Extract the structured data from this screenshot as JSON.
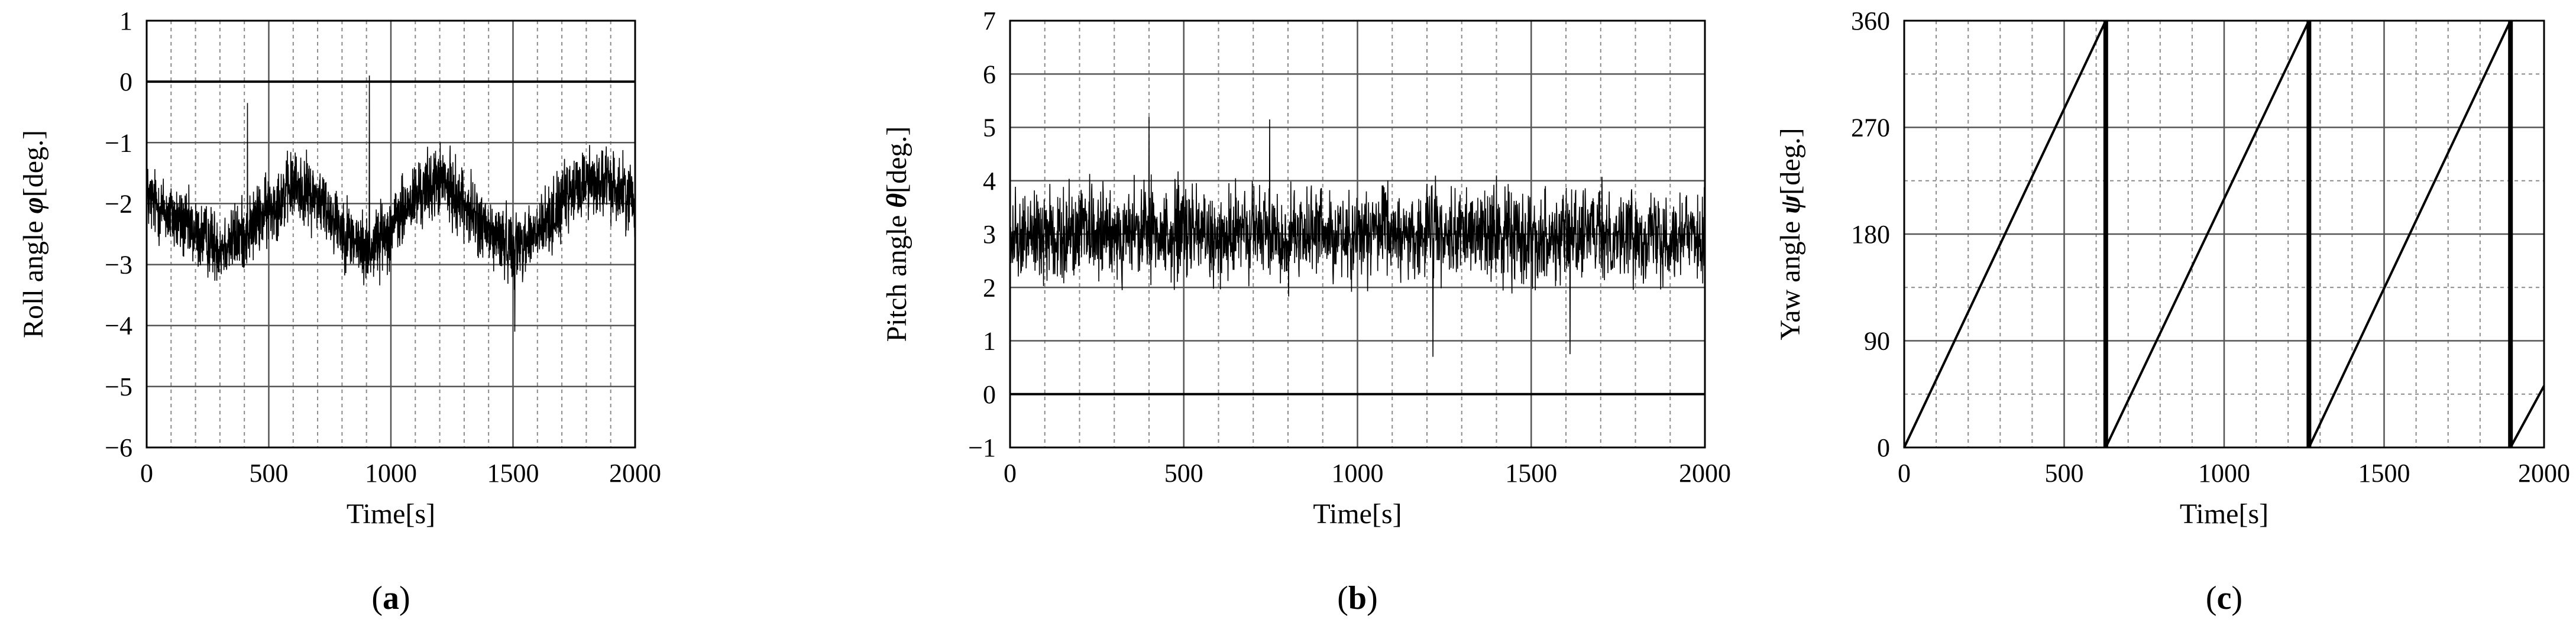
{
  "chart_data": [
    {
      "type": "line",
      "panel_label": "(a)",
      "panel_letter": "a",
      "xlabel": "Time[s]",
      "ylabel": "Roll angle φ[deg.]",
      "ylabel_text": "Roll angle ",
      "ylabel_symbol": "φ",
      "ylabel_unit": "[deg.]",
      "xlim": [
        0,
        2000
      ],
      "ylim": [
        -6,
        1
      ],
      "xticks": [
        0,
        500,
        1000,
        1500,
        2000
      ],
      "yticks": [
        -6,
        -5,
        -4,
        -3,
        -2,
        -1,
        0,
        1
      ],
      "xtick_labels": [
        "0",
        "500",
        "1000",
        "1500",
        "2000"
      ],
      "ytick_labels": [
        "−6",
        "−5",
        "−4",
        "−3",
        "−2",
        "−1",
        "0",
        "1"
      ],
      "minor_x_step": 100,
      "grid": true,
      "series": [
        {
          "color": "#000000",
          "style": "noisy",
          "x": [
            0,
            100,
            200,
            300,
            400,
            500,
            600,
            700,
            800,
            900,
            1000,
            1100,
            1200,
            1300,
            1400,
            1500,
            1600,
            1700,
            1800,
            1900,
            2000
          ],
          "y": [
            -1.9,
            -2.2,
            -2.5,
            -2.7,
            -2.5,
            -2.1,
            -1.7,
            -1.9,
            -2.4,
            -2.8,
            -2.4,
            -1.9,
            -1.6,
            -2.0,
            -2.5,
            -2.7,
            -2.5,
            -2.0,
            -1.6,
            -1.7,
            -1.9
          ],
          "noise": 0.85,
          "spike_max": [
            -0.35,
            0.1
          ],
          "spike_min": [
            -4.1
          ]
        }
      ]
    },
    {
      "type": "line",
      "panel_label": "(b)",
      "panel_letter": "b",
      "xlabel": "Time[s]",
      "ylabel": "Pitch angle θ[deg.]",
      "ylabel_text": "Pitch angle ",
      "ylabel_symbol": "θ",
      "ylabel_unit": "[deg.]",
      "xlim": [
        0,
        2000
      ],
      "ylim": [
        -1,
        7
      ],
      "xticks": [
        0,
        500,
        1000,
        1500,
        2000
      ],
      "yticks": [
        -1,
        0,
        1,
        2,
        3,
        4,
        5,
        6,
        7
      ],
      "xtick_labels": [
        "0",
        "500",
        "1000",
        "1500",
        "2000"
      ],
      "ytick_labels": [
        "−1",
        "0",
        "1",
        "2",
        "3",
        "4",
        "5",
        "6",
        "7"
      ],
      "minor_x_step": 100,
      "grid": true,
      "series": [
        {
          "color": "#000000",
          "style": "noisy",
          "x": [
            0,
            100,
            200,
            300,
            400,
            500,
            600,
            700,
            800,
            900,
            1000,
            1100,
            1200,
            1300,
            1400,
            1500,
            1600,
            1700,
            1800,
            1900,
            2000
          ],
          "y": [
            3.0,
            3.0,
            3.0,
            3.0,
            3.0,
            3.0,
            3.0,
            3.0,
            3.0,
            3.0,
            3.0,
            3.0,
            3.0,
            3.0,
            3.0,
            3.0,
            3.0,
            3.0,
            3.0,
            3.0,
            3.0
          ],
          "noise": 1.25,
          "spike_max": [
            5.2,
            5.15
          ],
          "spike_min": [
            0.7,
            0.75
          ]
        }
      ]
    },
    {
      "type": "line",
      "panel_label": "(c)",
      "panel_letter": "c",
      "xlabel": "Time[s]",
      "ylabel": "Yaw angle ψ[deg.]",
      "ylabel_text": "Yaw angle ",
      "ylabel_symbol": "ψ",
      "ylabel_unit": "[deg.]",
      "xlim": [
        0,
        2000
      ],
      "ylim": [
        0,
        360
      ],
      "xticks": [
        0,
        500,
        1000,
        1500,
        2000
      ],
      "yticks": [
        0,
        90,
        180,
        270,
        360
      ],
      "xtick_labels": [
        "0",
        "500",
        "1000",
        "1500",
        "2000"
      ],
      "ytick_labels": [
        "0",
        "90",
        "180",
        "270",
        "360"
      ],
      "minor_x_step": 100,
      "minor_y_step": 45,
      "grid": true,
      "series": [
        {
          "color": "#000000",
          "style": "sawtooth",
          "x": [
            0,
            630,
            630,
            1265,
            1265,
            1895,
            1895,
            2000
          ],
          "y": [
            0,
            360,
            0,
            360,
            0,
            360,
            0,
            52
          ]
        }
      ]
    }
  ]
}
